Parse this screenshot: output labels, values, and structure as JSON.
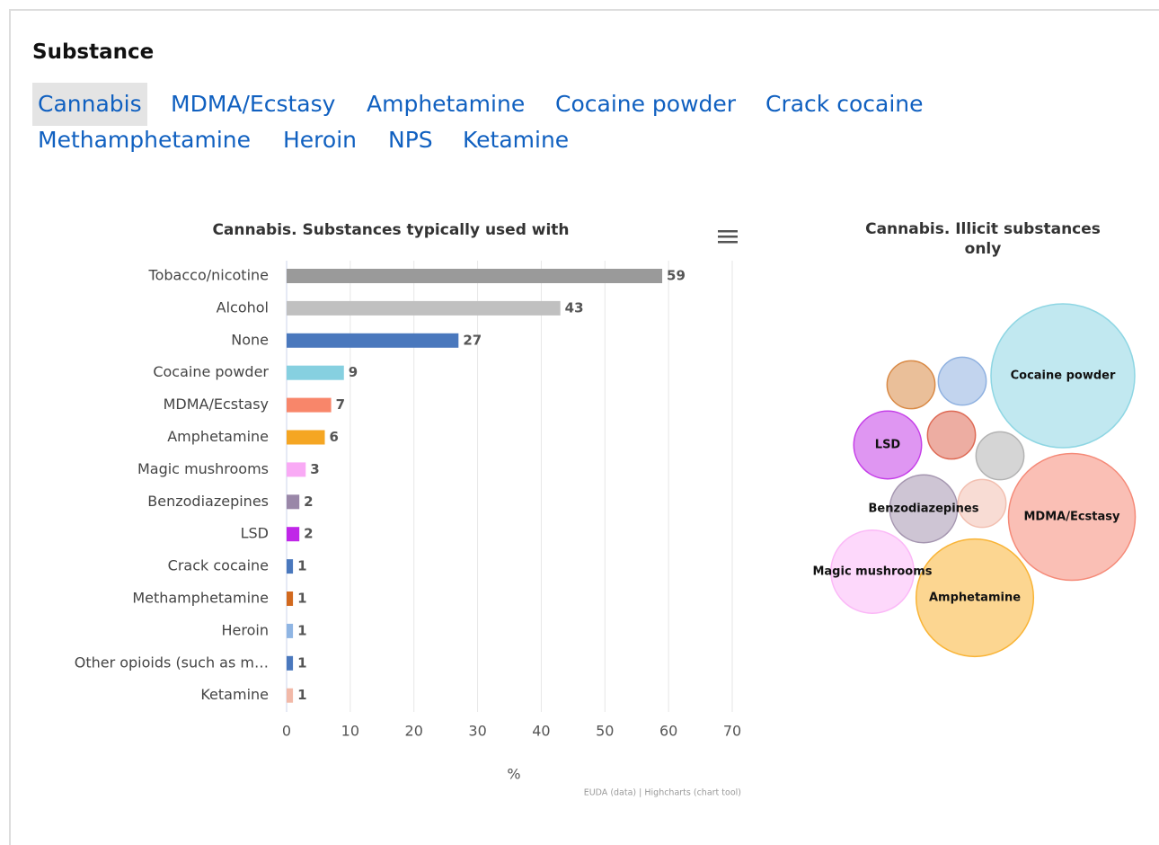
{
  "heading": "Substance",
  "tabs": {
    "items": [
      "Cannabis",
      "MDMA/Ecstasy",
      "Amphetamine",
      "Cocaine powder",
      "Crack cocaine",
      "Methamphetamine",
      "Heroin",
      "NPS",
      "Ketamine"
    ],
    "selected": 0
  },
  "chart_data": [
    {
      "type": "bar",
      "orientation": "horizontal",
      "title": "Cannabis. Substances typically used with",
      "categories": [
        "Tobacco/nicotine",
        "Alcohol",
        "None",
        "Cocaine powder",
        "MDMA/Ecstasy",
        "Amphetamine",
        "Magic mushrooms",
        "Benzodiazepines",
        "LSD",
        "Crack cocaine",
        "Methamphetamine",
        "Heroin",
        "Other opioids (such as m…",
        "Ketamine"
      ],
      "values": [
        59,
        43,
        27,
        9,
        7,
        6,
        3,
        2,
        2,
        1,
        1,
        1,
        1,
        1
      ],
      "colors": [
        "#9a9a9a",
        "#c0c0c0",
        "#4a78bd",
        "#86d0e0",
        "#f8866a",
        "#f5a623",
        "#f9aaf5",
        "#9a87a8",
        "#c026e8",
        "#4a78bd",
        "#d2691e",
        "#8fb5e3",
        "#4a78bd",
        "#f2b9a8"
      ],
      "xlim": [
        0,
        70
      ],
      "xticks": [
        0,
        10,
        20,
        30,
        40,
        50,
        60,
        70
      ],
      "grid": true,
      "xlabel": "%",
      "credits": "EUDA (data) | Highcharts (chart tool)"
    },
    {
      "type": "bubble",
      "title": "Cannabis. Illicit substances only",
      "categories": [
        "Cocaine powder",
        "MDMA/Ecstasy",
        "Amphetamine",
        "Magic mushrooms",
        "Benzodiazepines",
        "LSD",
        null,
        null,
        null,
        null,
        null
      ],
      "values": [
        9,
        7,
        6,
        3,
        2,
        2,
        1,
        1,
        1,
        1,
        1
      ],
      "colors": [
        "#8ed6e3",
        "#f58a78",
        "#f9b436",
        "#fbb8f7",
        "#a596b0",
        "#c53fe8",
        "#d98a46",
        "#8fb1e0",
        "#de6a55",
        "#b3b3b3",
        "#f2bfb0"
      ]
    }
  ]
}
